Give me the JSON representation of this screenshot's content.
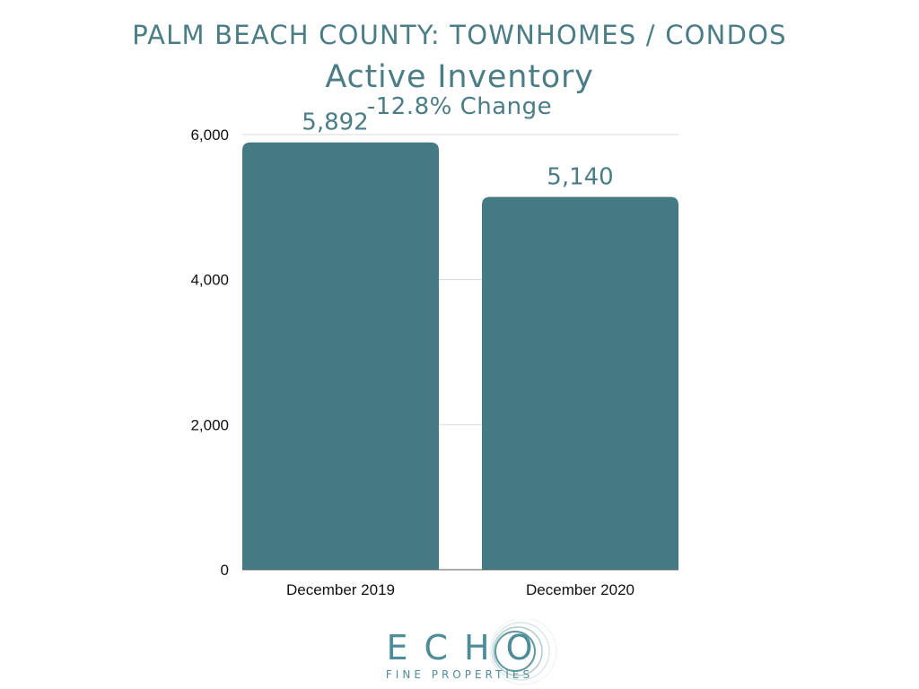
{
  "header": {
    "title": "PALM BEACH COUNTY: TOWNHOMES / CONDOS",
    "subtitle": "Active Inventory",
    "change_note": "-12.8% Change"
  },
  "chart_data": {
    "type": "bar",
    "title": "Active Inventory",
    "categories": [
      "December 2019",
      "December 2020"
    ],
    "values": [
      5892,
      5140
    ],
    "data_labels": [
      "5,892",
      "5,140"
    ],
    "ylim": [
      0,
      6000
    ],
    "yticks": [
      0,
      2000,
      4000,
      6000
    ],
    "ytick_labels": [
      "0",
      "2,000",
      "4,000",
      "6,000"
    ],
    "xlabel": "",
    "ylabel": "",
    "grid": true,
    "legend": "none",
    "bar_color": "#437a83",
    "grid_color": "#d9d9d9"
  },
  "logo": {
    "word": "ECHO",
    "tagline": "FINE PROPERTIES",
    "color": "#4e8d97"
  }
}
